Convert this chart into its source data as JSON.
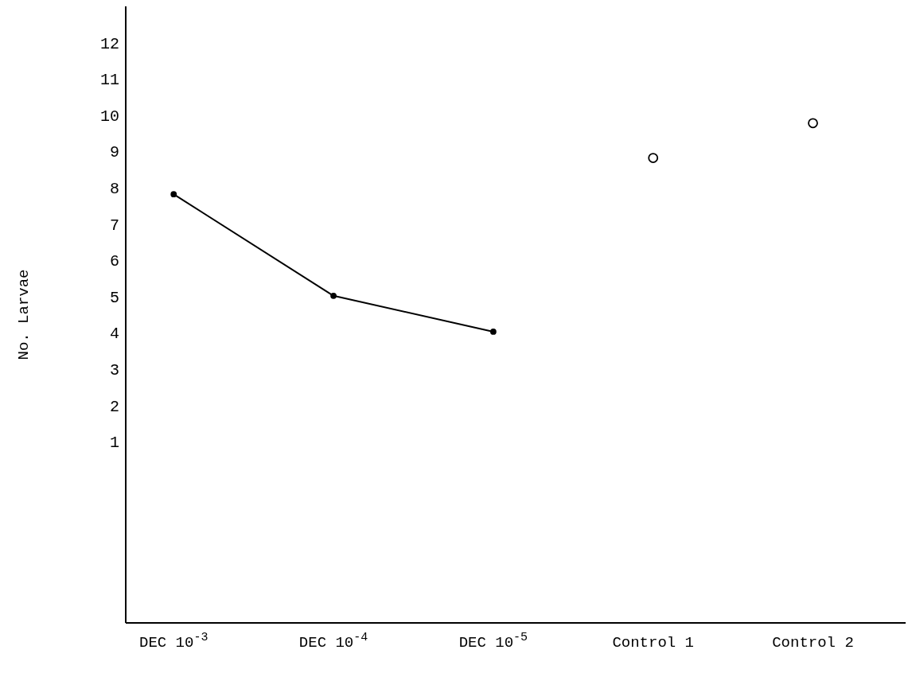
{
  "chart_data": {
    "type": "line",
    "ylabel": "No. Larvae",
    "categories": [
      "DEC 10$^{-3}$",
      "DEC 10$^{-4}$",
      "DEC 10$^{-5}$",
      "Control 1",
      "Control 2"
    ],
    "series": [
      {
        "color": "#000000",
        "marker": "circle",
        "values": [
          7.82,
          5.02,
          4.03,
          null,
          null
        ]
      },
      {
        "type": "scatter",
        "color": "#000000",
        "marker": "circle",
        "values": [
          null,
          null,
          null,
          8.82,
          9.78
        ]
      }
    ],
    "ylim": [
      -4,
      13
    ],
    "yticks": [
      1,
      2,
      3,
      4,
      5,
      6,
      7,
      8,
      9,
      10,
      11,
      12
    ],
    "grid": false,
    "legend": false
  }
}
